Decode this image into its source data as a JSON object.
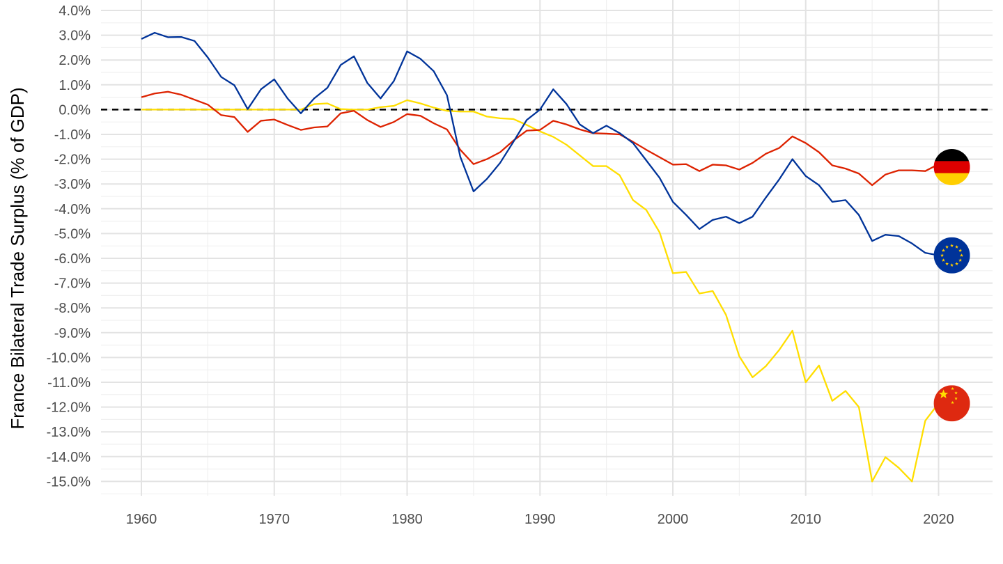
{
  "chart_data": {
    "type": "line",
    "title": "",
    "xlabel": "",
    "ylabel": "France Bilateral Trade Surplus (% of GDP)",
    "xlim": [
      1957,
      2024
    ],
    "ylim": [
      -15.6,
      4.0
    ],
    "x_ticks": [
      1960,
      1970,
      1980,
      1990,
      2000,
      2010,
      2020
    ],
    "x_tick_labels": [
      "1960",
      "1970",
      "1980",
      "1990",
      "2000",
      "2010",
      "2020"
    ],
    "y_ticks": [
      4,
      3,
      2,
      1,
      0,
      -1,
      -2,
      -3,
      -4,
      -5,
      -6,
      -7,
      -8,
      -9,
      -10,
      -11,
      -12,
      -13,
      -14,
      -15
    ],
    "y_tick_labels": [
      "4.0%",
      "3.0%",
      "2.0%",
      "1.0%",
      "0.0%",
      "-1.0%",
      "-2.0%",
      "-3.0%",
      "-4.0%",
      "-5.0%",
      "-6.0%",
      "-7.0%",
      "-8.0%",
      "-9.0%",
      "-10.0%",
      "-11.0%",
      "-12.0%",
      "-13.0%",
      "-14.0%",
      "-15.0%"
    ],
    "grid": true,
    "reference_line": {
      "y": 0,
      "style": "dashed",
      "color": "#000000"
    },
    "legend": "flag markers at series ends (right)",
    "series": [
      {
        "color": "#003399",
        "marker_icon": "eu-flag-icon",
        "x": [
          1960,
          1961,
          1962,
          1963,
          1964,
          1965,
          1966,
          1967,
          1968,
          1969,
          1970,
          1971,
          1972,
          1973,
          1974,
          1975,
          1976,
          1977,
          1978,
          1979,
          1980,
          1981,
          1982,
          1983,
          1984,
          1985,
          1986,
          1987,
          1988,
          1989,
          1990,
          1991,
          1992,
          1993,
          1994,
          1995,
          1996,
          1997,
          1998,
          1999,
          2000,
          2001,
          2002,
          2003,
          2004,
          2005,
          2006,
          2007,
          2008,
          2009,
          2010,
          2011,
          2012,
          2013,
          2014,
          2015,
          2016,
          2017,
          2018,
          2019,
          2020
        ],
        "values": [
          2.85,
          3.1,
          2.92,
          2.93,
          2.77,
          2.1,
          1.32,
          0.98,
          0.02,
          0.82,
          1.22,
          0.45,
          -0.15,
          0.45,
          0.88,
          1.8,
          2.15,
          1.08,
          0.45,
          1.15,
          2.35,
          2.05,
          1.55,
          0.58,
          -1.9,
          -3.3,
          -2.8,
          -2.15,
          -1.3,
          -0.42,
          0.0,
          0.82,
          0.22,
          -0.6,
          -0.95,
          -0.65,
          -0.95,
          -1.35,
          -2.05,
          -2.75,
          -3.72,
          -4.25,
          -4.82,
          -4.45,
          -4.32,
          -4.58,
          -4.32,
          -3.55,
          -2.82,
          -2.0,
          -2.68,
          -3.05,
          -3.72,
          -3.65,
          -4.25,
          -5.3,
          -5.05,
          -5.1,
          -5.4,
          -5.78,
          -5.88
        ]
      },
      {
        "color": "#dd2200",
        "marker_icon": "germany-flag-icon",
        "x": [
          1960,
          1961,
          1962,
          1963,
          1964,
          1965,
          1966,
          1967,
          1968,
          1969,
          1970,
          1971,
          1972,
          1973,
          1974,
          1975,
          1976,
          1977,
          1978,
          1979,
          1980,
          1981,
          1982,
          1983,
          1984,
          1985,
          1986,
          1987,
          1988,
          1989,
          1990,
          1991,
          1992,
          1993,
          1994,
          1995,
          1996,
          1997,
          1998,
          1999,
          2000,
          2001,
          2002,
          2003,
          2004,
          2005,
          2006,
          2007,
          2008,
          2009,
          2010,
          2011,
          2012,
          2013,
          2014,
          2015,
          2016,
          2017,
          2018,
          2019,
          2020,
          2021
        ],
        "values": [
          0.5,
          0.65,
          0.72,
          0.6,
          0.4,
          0.2,
          -0.22,
          -0.3,
          -0.9,
          -0.45,
          -0.4,
          -0.62,
          -0.82,
          -0.72,
          -0.68,
          -0.15,
          -0.05,
          -0.42,
          -0.7,
          -0.5,
          -0.18,
          -0.25,
          -0.55,
          -0.8,
          -1.62,
          -2.2,
          -2.0,
          -1.72,
          -1.25,
          -0.85,
          -0.82,
          -0.45,
          -0.6,
          -0.8,
          -0.95,
          -0.97,
          -1.0,
          -1.3,
          -1.62,
          -1.92,
          -2.22,
          -2.2,
          -2.48,
          -2.22,
          -2.25,
          -2.42,
          -2.15,
          -1.78,
          -1.55,
          -1.08,
          -1.35,
          -1.72,
          -2.25,
          -2.38,
          -2.58,
          -3.05,
          -2.62,
          -2.45,
          -2.45,
          -2.48,
          -2.2,
          -2.32
        ]
      },
      {
        "color": "#ffde00",
        "marker_icon": "china-flag-icon",
        "x": [
          1960,
          1961,
          1962,
          1963,
          1964,
          1965,
          1966,
          1967,
          1968,
          1969,
          1970,
          1971,
          1972,
          1973,
          1974,
          1975,
          1976,
          1977,
          1978,
          1979,
          1980,
          1981,
          1982,
          1983,
          1984,
          1985,
          1986,
          1987,
          1988,
          1989,
          1990,
          1991,
          1992,
          1993,
          1994,
          1995,
          1996,
          1997,
          1998,
          1999,
          2000,
          2001,
          2002,
          2003,
          2004,
          2005,
          2006,
          2007,
          2008,
          2009,
          2010,
          2011,
          2012,
          2013,
          2014,
          2015,
          2016,
          2017,
          2018,
          2019,
          2020
        ],
        "values": [
          0.0,
          0.0,
          0.0,
          0.0,
          0.0,
          0.0,
          0.0,
          0.0,
          0.0,
          0.0,
          0.0,
          0.0,
          0.0,
          0.22,
          0.25,
          0.02,
          0.0,
          0.0,
          0.1,
          0.15,
          0.38,
          0.25,
          0.08,
          -0.05,
          -0.08,
          -0.08,
          -0.28,
          -0.35,
          -0.38,
          -0.62,
          -0.88,
          -1.1,
          -1.42,
          -1.85,
          -2.28,
          -2.28,
          -2.65,
          -3.65,
          -4.05,
          -4.95,
          -6.6,
          -6.55,
          -7.42,
          -7.32,
          -8.28,
          -9.95,
          -10.8,
          -10.35,
          -9.7,
          -8.92,
          -11.0,
          -10.32,
          -11.75,
          -11.35,
          -12.0,
          -15.0,
          -14.02,
          -14.45,
          -15.0,
          -12.55,
          -11.85
        ]
      }
    ]
  }
}
